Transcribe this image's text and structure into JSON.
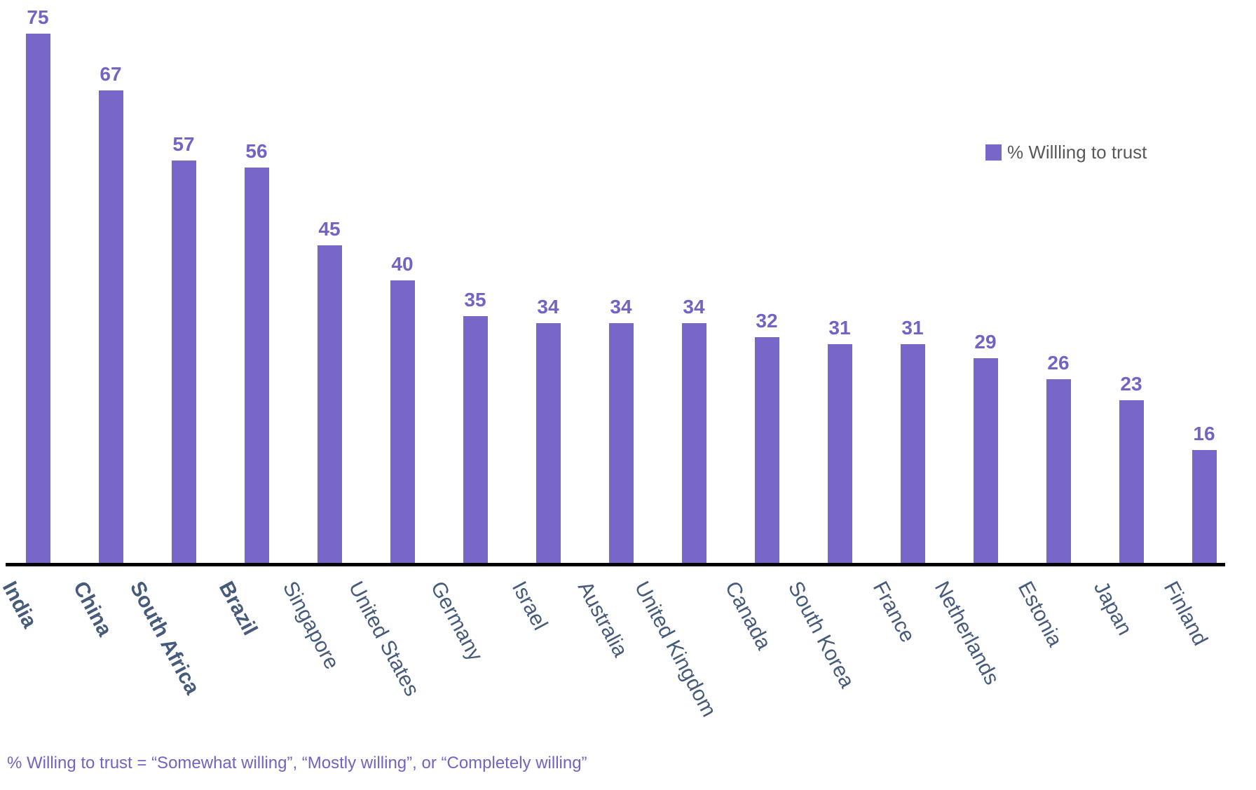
{
  "chart_data": {
    "type": "bar",
    "title": "",
    "categories": [
      "India",
      "China",
      "South Africa",
      "Brazil",
      "Singapore",
      "United States",
      "Germany",
      "Israel",
      "Australia",
      "United Kingdom",
      "Canada",
      "South Korea",
      "France",
      "Netherlands",
      "Estonia",
      "Japan",
      "Finland"
    ],
    "values": [
      75,
      67,
      57,
      56,
      45,
      40,
      35,
      34,
      34,
      34,
      32,
      31,
      31,
      29,
      26,
      23,
      16
    ],
    "series": [
      {
        "name": "% Willling to trust",
        "values": [
          75,
          67,
          57,
          56,
          45,
          40,
          35,
          34,
          34,
          34,
          32,
          31,
          31,
          29,
          26,
          23,
          16
        ]
      }
    ],
    "emphasized_categories": [
      "India",
      "China",
      "South Africa",
      "Brazil"
    ],
    "data_labels_shown": true,
    "y_axis_visible": false,
    "grid": false,
    "ylim": [
      0,
      80
    ],
    "legend": {
      "label": "% Willling to trust",
      "position": "top-right"
    },
    "bar_color": "#7866C8"
  },
  "footnote": {
    "text": "% Willing to trust = “Somewhat willing”, “Mostly willing”, or “Completely willing”"
  },
  "colors": {
    "bar": "#7866C8",
    "value_label": "#7463C4",
    "category_label": "#465A7C",
    "legend_text": "#595959",
    "footnote_text": "#7263C4",
    "axis": "#000000"
  }
}
